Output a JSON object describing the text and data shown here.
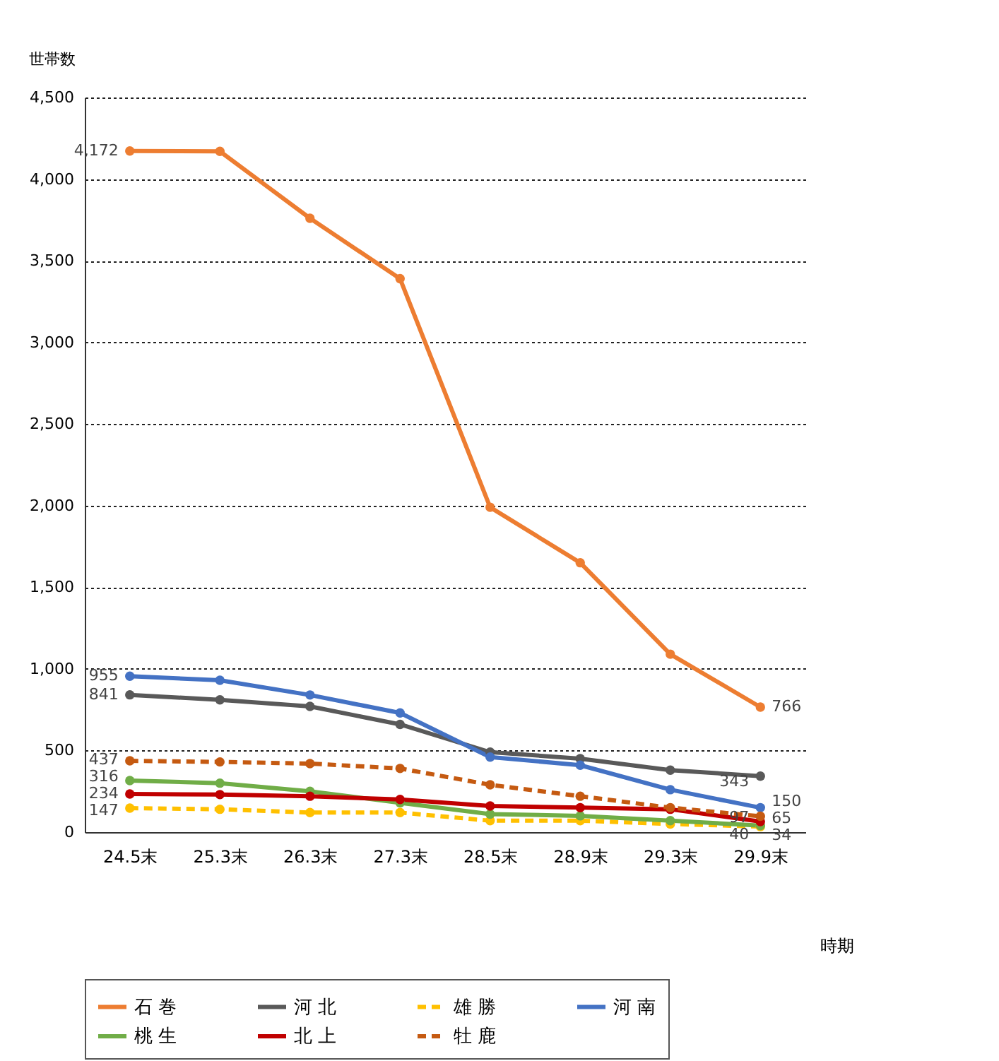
{
  "chart_data": {
    "type": "line",
    "ylabel": "世帯数",
    "xlabel": "時期",
    "categories": [
      "24.5末",
      "25.3末",
      "26.3末",
      "27.3末",
      "28.5末",
      "28.9末",
      "29.3末",
      "29.9末"
    ],
    "ylim": [
      0,
      4500
    ],
    "yticks": [
      {
        "value": 0,
        "label": "0"
      },
      {
        "value": 500,
        "label": "500"
      },
      {
        "value": 1000,
        "label": "1,000"
      },
      {
        "value": 1500,
        "label": "1,500"
      },
      {
        "value": 2000,
        "label": "2,000"
      },
      {
        "value": 2500,
        "label": "2,500"
      },
      {
        "value": 3000,
        "label": "3,000"
      },
      {
        "value": 3500,
        "label": "3,500"
      },
      {
        "value": 4000,
        "label": "4,000"
      },
      {
        "value": 4500,
        "label": "4,500"
      }
    ],
    "grid": "y",
    "legend": "bottom",
    "marker": "circle",
    "series": [
      {
        "name": "石 巻",
        "color": "#ed7d31",
        "line_style": "solid",
        "values": [
          4172,
          4170,
          3760,
          3390,
          1990,
          1650,
          1090,
          766
        ],
        "value_labels": [
          "4,172",
          null,
          null,
          null,
          null,
          null,
          null,
          "766"
        ]
      },
      {
        "name": "河 北",
        "color": "#595959",
        "line_style": "solid",
        "values": [
          841,
          810,
          770,
          660,
          490,
          450,
          380,
          343
        ],
        "value_labels": [
          "841",
          null,
          null,
          null,
          null,
          null,
          null,
          "343"
        ]
      },
      {
        "name": "雄 勝",
        "color": "#ffc000",
        "line_style": "dashed",
        "values": [
          147,
          140,
          120,
          120,
          70,
          70,
          50,
          34
        ],
        "value_labels": [
          "147",
          null,
          null,
          null,
          null,
          null,
          null,
          "34"
        ]
      },
      {
        "name": "河 南",
        "color": "#4472c4",
        "line_style": "solid",
        "values": [
          955,
          930,
          840,
          730,
          460,
          410,
          260,
          150
        ],
        "value_labels": [
          "955",
          null,
          null,
          null,
          null,
          null,
          null,
          "150"
        ]
      },
      {
        "name": "桃 生",
        "color": "#70ad47",
        "line_style": "solid",
        "values": [
          316,
          300,
          250,
          180,
          110,
          100,
          70,
          40
        ],
        "value_labels": [
          "316",
          null,
          null,
          null,
          null,
          null,
          null,
          "40"
        ]
      },
      {
        "name": "北 上",
        "color": "#c00000",
        "line_style": "solid",
        "values": [
          234,
          230,
          220,
          200,
          160,
          150,
          140,
          65
        ],
        "value_labels": [
          "234",
          null,
          null,
          null,
          null,
          null,
          null,
          "65"
        ]
      },
      {
        "name": "牡 鹿",
        "color": "#c55a11",
        "line_style": "dashed",
        "values": [
          437,
          430,
          420,
          390,
          290,
          220,
          150,
          97
        ],
        "value_labels": [
          "437",
          null,
          null,
          null,
          null,
          null,
          null,
          "97"
        ]
      }
    ]
  }
}
